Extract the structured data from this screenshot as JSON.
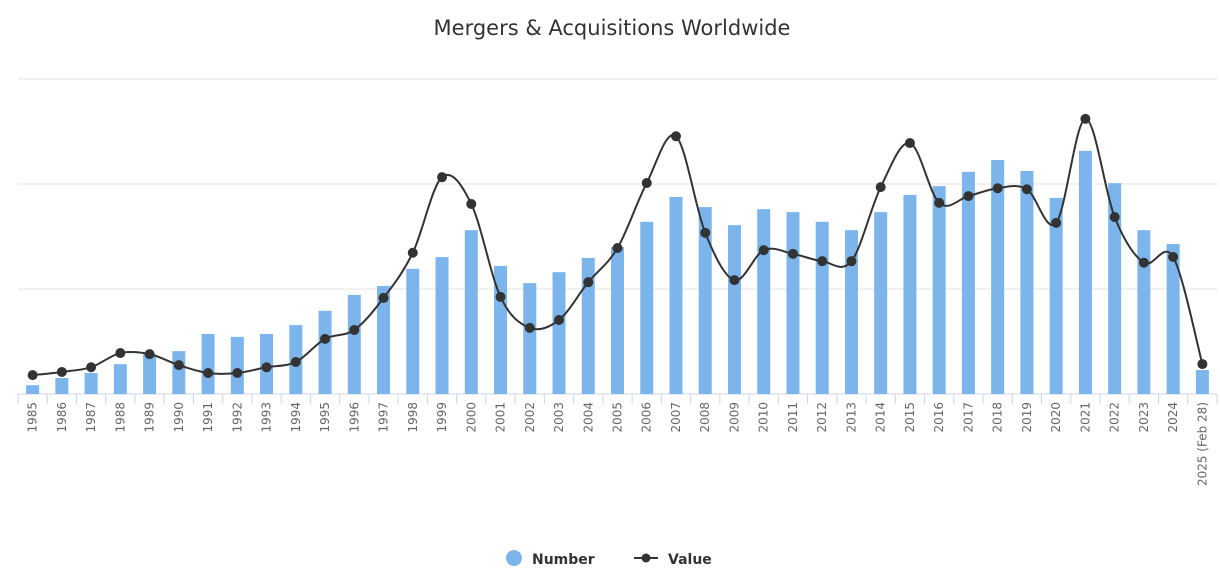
{
  "chart_data": {
    "type": "bar+line",
    "title": "Mergers & Acquisitions Worldwide",
    "xlabel": "",
    "ylabel": "",
    "categories": [
      "1985",
      "1986",
      "1987",
      "1988",
      "1989",
      "1990",
      "1991",
      "1992",
      "1993",
      "1994",
      "1995",
      "1996",
      "1997",
      "1998",
      "1999",
      "2000",
      "2001",
      "2002",
      "2003",
      "2004",
      "2005",
      "2006",
      "2007",
      "2008",
      "2009",
      "2010",
      "2011",
      "2012",
      "2013",
      "2014",
      "2015",
      "2016",
      "2017",
      "2018",
      "2019",
      "2020",
      "2021",
      "2022",
      "2023",
      "2024",
      "2025 (Feb 28)"
    ],
    "series": [
      {
        "name": "Number",
        "type": "bar",
        "color": "#7cb5ec",
        "ylim": [
          0,
          75000
        ],
        "values": [
          2100,
          3800,
          5000,
          7100,
          9500,
          10200,
          14300,
          13600,
          14300,
          16400,
          19800,
          23600,
          25700,
          29800,
          32600,
          39000,
          30500,
          26400,
          29000,
          32400,
          35000,
          41000,
          46900,
          44500,
          40200,
          44000,
          43300,
          41000,
          39000,
          43300,
          47400,
          49500,
          52900,
          55700,
          53100,
          46700,
          57900,
          50200,
          39000,
          35700,
          5700
        ]
      },
      {
        "name": "Value",
        "type": "spline",
        "color": "#333333",
        "ylim": [
          0,
          6000
        ],
        "values": [
          360,
          420,
          510,
          780,
          760,
          550,
          400,
          400,
          510,
          610,
          1050,
          1220,
          1830,
          2690,
          4130,
          3620,
          1850,
          1260,
          1410,
          2130,
          2780,
          4020,
          4910,
          3070,
          2170,
          2740,
          2670,
          2530,
          2530,
          3940,
          4780,
          3640,
          3770,
          3920,
          3900,
          3260,
          5240,
          3370,
          2500,
          2610,
          570
        ]
      }
    ],
    "grid": true,
    "gridlines": 3,
    "y_axis_labels_visible": false,
    "legend": "bottom-center"
  }
}
